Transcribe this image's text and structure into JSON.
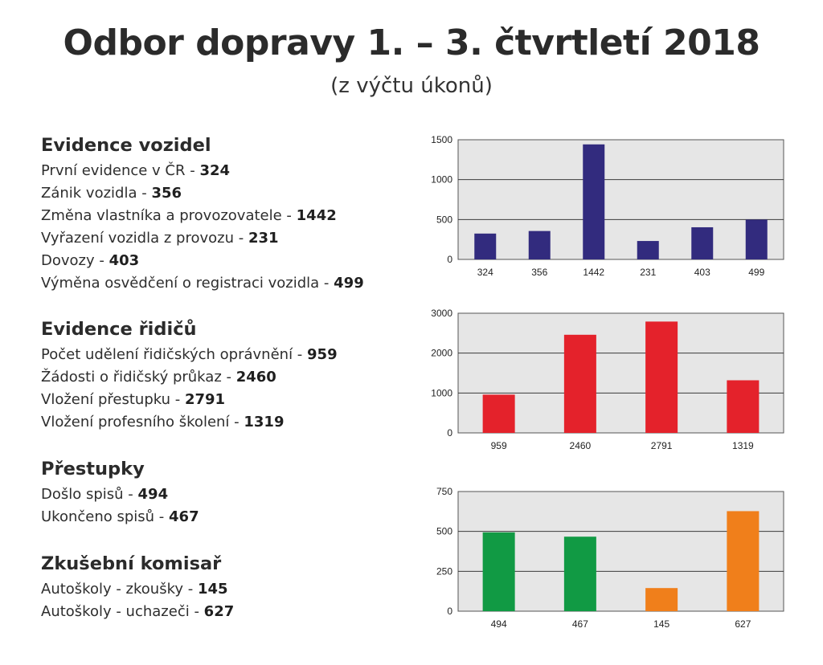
{
  "title": "Odbor dopravy 1. – 3. čtvrtletí 2018",
  "subtitle": "(z výčtu úkonů)",
  "sections": [
    {
      "heading": "Evidence vozidel",
      "items": [
        {
          "label": "První evidence v ČR - ",
          "value": "324"
        },
        {
          "label": "Zánik vozidla - ",
          "value": "356"
        },
        {
          "label": "Změna vlastníka a provozovatele - ",
          "value": "1442"
        },
        {
          "label": "Vyřazení vozidla z provozu - ",
          "value": "231"
        },
        {
          "label": "Dovozy - ",
          "value": "403"
        },
        {
          "label": "Výměna osvědčení o registraci vozidla - ",
          "value": "499"
        }
      ]
    },
    {
      "heading": "Evidence řidičů",
      "items": [
        {
          "label": "Počet udělení řidičských oprávnění - ",
          "value": "959"
        },
        {
          "label": "Žádosti o řidičský průkaz - ",
          "value": "2460"
        },
        {
          "label": "Vložení přestupku - ",
          "value": "2791"
        },
        {
          "label": "Vložení profesního školení - ",
          "value": "1319"
        }
      ]
    },
    {
      "heading": "Přestupky",
      "items": [
        {
          "label": "Došlo spisů - ",
          "value": "494"
        },
        {
          "label": "Ukončeno spisů - ",
          "value": "467"
        }
      ]
    },
    {
      "heading": "Zkušební komisař",
      "items": [
        {
          "label": "Autoškoly - zkoušky - ",
          "value": "145"
        },
        {
          "label": "Autoškoly - uchazeči - ",
          "value": "627"
        }
      ]
    }
  ],
  "chart_data": [
    {
      "type": "bar",
      "categories": [
        "324",
        "356",
        "1442",
        "231",
        "403",
        "499"
      ],
      "values": [
        324,
        356,
        1442,
        231,
        403,
        499
      ],
      "colors": [
        "#322b7e",
        "#322b7e",
        "#322b7e",
        "#322b7e",
        "#322b7e",
        "#322b7e"
      ],
      "ylim": [
        0,
        1500
      ],
      "yticks": [
        0,
        500,
        1000,
        1500
      ],
      "grid": true,
      "plot_bg": "#e6e6e6"
    },
    {
      "type": "bar",
      "categories": [
        "959",
        "2460",
        "2791",
        "1319"
      ],
      "values": [
        959,
        2460,
        2791,
        1319
      ],
      "colors": [
        "#e4222b",
        "#e4222b",
        "#e4222b",
        "#e4222b"
      ],
      "ylim": [
        0,
        3000
      ],
      "yticks": [
        0,
        1000,
        2000,
        3000
      ],
      "grid": true,
      "plot_bg": "#e6e6e6"
    },
    {
      "type": "bar",
      "categories": [
        "494",
        "467",
        "145",
        "627"
      ],
      "values": [
        494,
        467,
        145,
        627
      ],
      "colors": [
        "#119a44",
        "#119a44",
        "#f07f1b",
        "#f07f1b"
      ],
      "ylim": [
        0,
        750
      ],
      "yticks": [
        0,
        250,
        500,
        750
      ],
      "grid": true,
      "plot_bg": "#e6e6e6"
    }
  ]
}
